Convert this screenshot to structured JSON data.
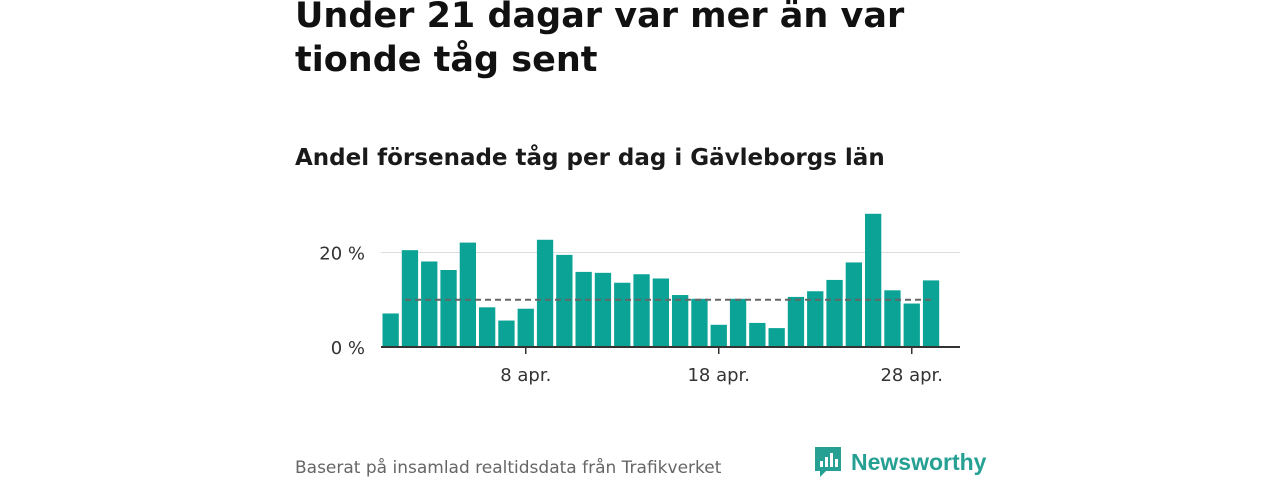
{
  "header": {
    "title": "Under 21 dagar var mer än var tionde tåg sent",
    "subtitle": "Andel försenade tåg per dag i Gävleborgs län"
  },
  "footer": {
    "source": "Baserat på insamlad realtidsdata från Trafikverket",
    "logo_text": "Newsworthy",
    "logo_icon": "bar-chart-speech-bubble-icon"
  },
  "colors": {
    "bar": "#0aa396",
    "average_line": "#666666",
    "gridline": "#dddddd",
    "axis": "#333333",
    "brand": "#25a093"
  },
  "chart_data": {
    "type": "bar",
    "x": [
      "1 apr.",
      "2 apr.",
      "3 apr.",
      "4 apr.",
      "5 apr.",
      "6 apr.",
      "7 apr.",
      "8 apr.",
      "9 apr.",
      "10 apr.",
      "11 apr.",
      "12 apr.",
      "13 apr.",
      "14 apr.",
      "15 apr.",
      "16 apr.",
      "17 apr.",
      "18 apr.",
      "19 apr.",
      "20 apr.",
      "21 apr.",
      "22 apr.",
      "23 apr.",
      "24 apr.",
      "25 apr.",
      "26 apr.",
      "27 apr.",
      "28 apr.",
      "29 apr.",
      "30 apr."
    ],
    "values": [
      7.1,
      20.5,
      18.1,
      16.3,
      22.1,
      8.4,
      5.6,
      8.1,
      22.7,
      19.5,
      15.9,
      15.7,
      13.6,
      15.4,
      14.5,
      11.0,
      10.2,
      4.7,
      10.2,
      5.1,
      4.0,
      10.6,
      11.8,
      14.2,
      17.9,
      28.2,
      12.0,
      9.2,
      14.1,
      null
    ],
    "average": 10.0,
    "ylim": [
      0,
      29
    ],
    "yticks": [
      {
        "value": 0,
        "label": "0 %"
      },
      {
        "value": 20,
        "label": "20 %"
      }
    ],
    "xticks": [
      {
        "index": 7,
        "label": "8 apr."
      },
      {
        "index": 17,
        "label": "18 apr."
      },
      {
        "index": 27,
        "label": "28 apr."
      }
    ],
    "grid": true,
    "legend": "none"
  }
}
